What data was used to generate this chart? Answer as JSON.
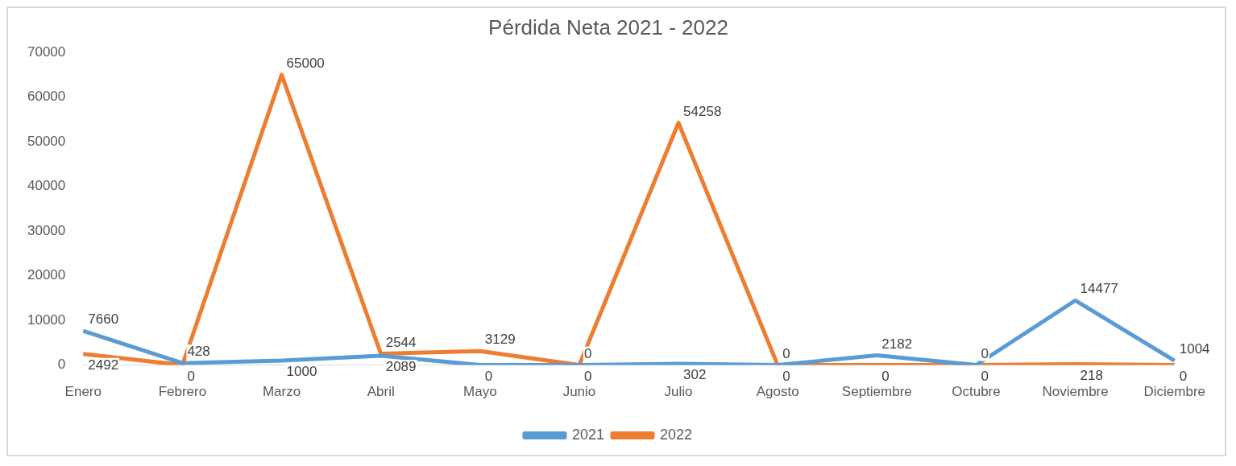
{
  "chart_data": {
    "type": "line",
    "title": "Pérdida Neta 2021 - 2022",
    "categories": [
      "Enero",
      "Febrero",
      "Marzo",
      "Abril",
      "Mayo",
      "Junio",
      "Julio",
      "Agosto",
      "Septiembre",
      "Octubre",
      "Noviembre",
      "Diciembre"
    ],
    "series": [
      {
        "name": "2021",
        "color": "#5b9bd5",
        "values": [
          7660,
          428,
          1000,
          2089,
          0,
          0,
          302,
          0,
          2182,
          0,
          14477,
          1004
        ]
      },
      {
        "name": "2022",
        "color": "#ed7d31",
        "values": [
          2492,
          0,
          65000,
          2544,
          3129,
          0,
          54258,
          0,
          0,
          0,
          218,
          0
        ]
      }
    ],
    "ylim": [
      0,
      70000
    ],
    "yticks": [
      0,
      10000,
      20000,
      30000,
      40000,
      50000,
      60000,
      70000
    ],
    "grid": false,
    "legend": "bottom",
    "data_labels": true,
    "marker": "none"
  }
}
